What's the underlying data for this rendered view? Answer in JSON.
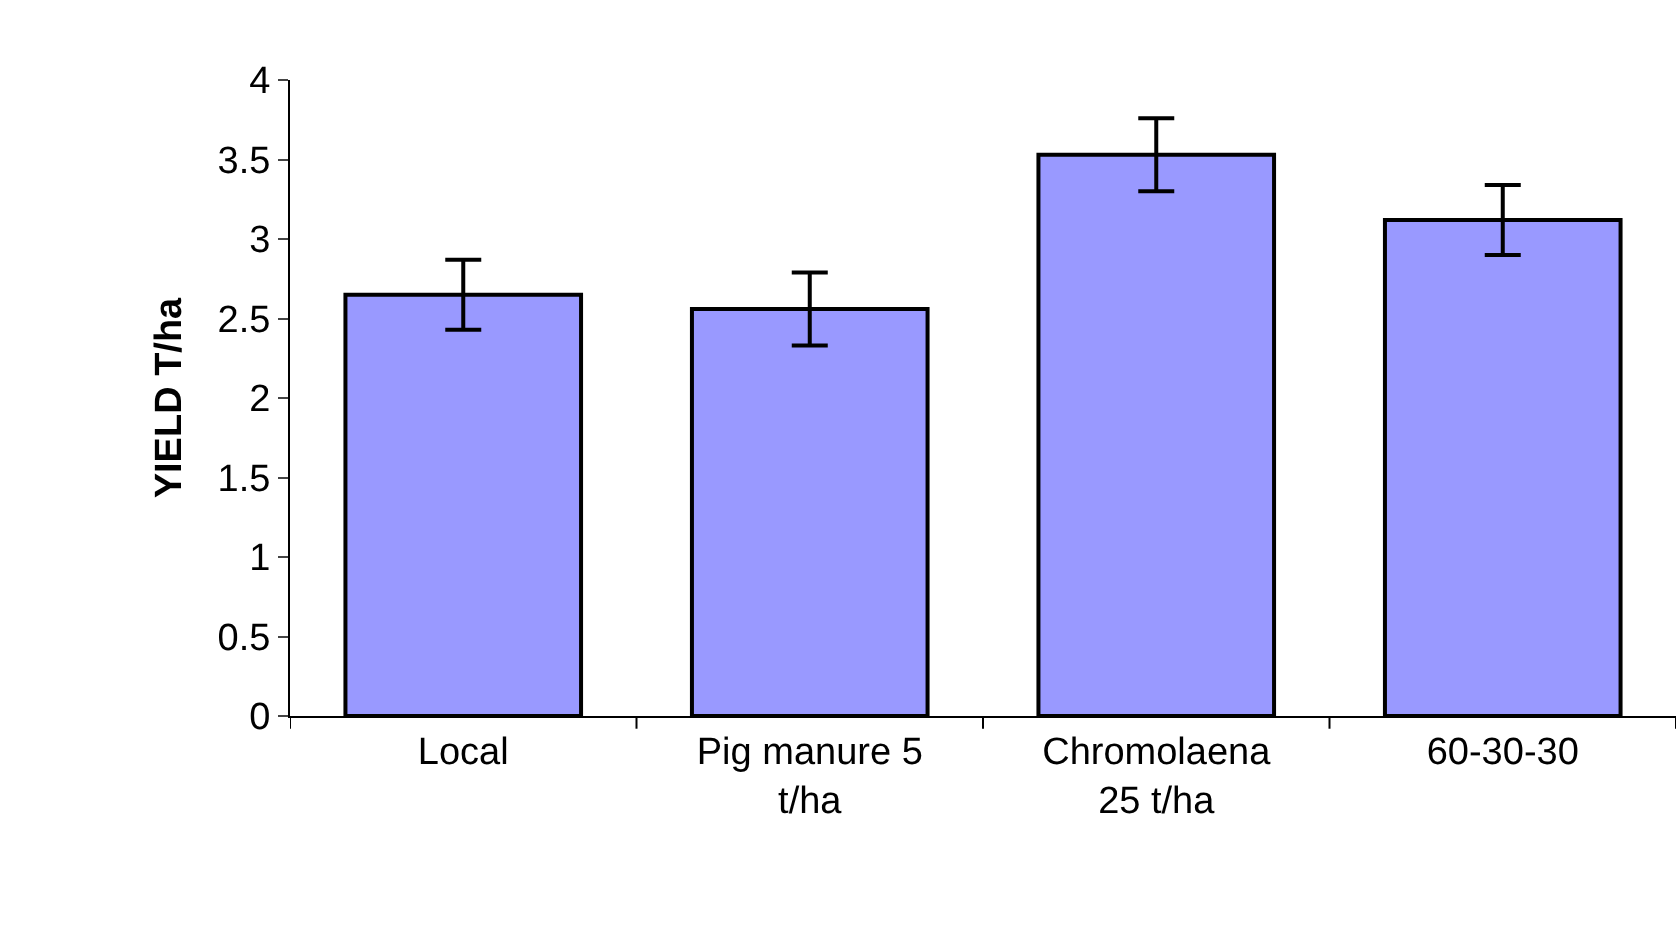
{
  "chart_data": {
    "type": "bar",
    "ylabel": "YIELD T/ha",
    "categories": [
      "Local",
      "Pig manure 5 t/ha",
      "Chromolaena 25 t/ha",
      "60-30-30"
    ],
    "values": [
      2.65,
      2.56,
      3.53,
      3.12
    ],
    "errors": [
      0.22,
      0.23,
      0.23,
      0.22
    ],
    "color": "#9999ff",
    "ylim": [
      0,
      4
    ],
    "yticks": [
      0,
      0.5,
      1,
      1.5,
      2,
      2.5,
      3,
      3.5,
      4
    ],
    "legend": false
  }
}
